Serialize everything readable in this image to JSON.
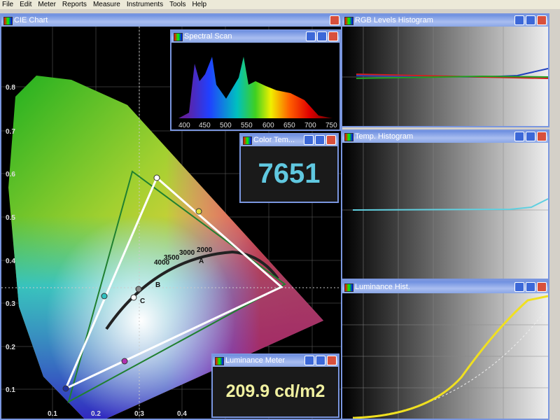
{
  "menu": [
    "File",
    "Edit",
    "Meter",
    "Reports",
    "Measure",
    "Instruments",
    "Tools",
    "Help"
  ],
  "cie": {
    "title": "CIE Chart",
    "y_ticks": [
      "0.8",
      "0.7",
      "0.6",
      "0.5",
      "0.4",
      "0.3",
      "0.2",
      "0.1"
    ],
    "x_ticks": [
      "0.1",
      "0.2",
      "0.3",
      "0.4"
    ],
    "temps": [
      "2000",
      "3000",
      "3500",
      "4000"
    ],
    "points": [
      "A",
      "B",
      "C"
    ]
  },
  "spectral": {
    "title": "Spectral Scan",
    "x_ticks": [
      "400",
      "450",
      "500",
      "550",
      "600",
      "650",
      "700",
      "750"
    ]
  },
  "color_temp": {
    "title": "Color Tem...",
    "value": "7651"
  },
  "luminance_meter": {
    "title": "Luminance Meter",
    "value": "209.9 cd/m2"
  },
  "rgb_hist": {
    "title": "RGB Levels Histogram"
  },
  "temp_hist": {
    "title": "Temp. Histogram"
  },
  "lum_hist": {
    "title": "Luminance Hist."
  }
}
